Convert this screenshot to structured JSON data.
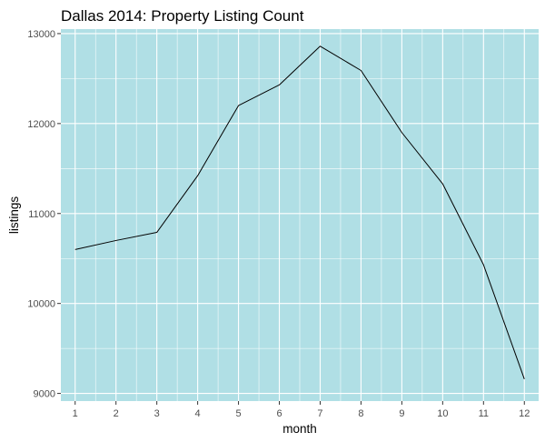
{
  "chart_data": {
    "type": "line",
    "title": "Dallas 2014: Property Listing Count",
    "xlabel": "month",
    "ylabel": "listings",
    "x": [
      1,
      2,
      3,
      4,
      5,
      6,
      7,
      8,
      9,
      10,
      11,
      12
    ],
    "series": [
      {
        "values": [
          10600,
          10700,
          10790,
          11420,
          12200,
          12430,
          12860,
          12590,
          11900,
          11330,
          10430,
          9160
        ]
      }
    ],
    "x_ticks": [
      "1",
      "2",
      "3",
      "4",
      "5",
      "6",
      "7",
      "8",
      "9",
      "10",
      "11",
      "12"
    ],
    "y_ticks": [
      "9000",
      "10000",
      "11000",
      "12000",
      "13000"
    ],
    "xlim": [
      0.65,
      12.35
    ],
    "ylim": [
      8915,
      13050
    ],
    "grid": true,
    "legend": "none",
    "colors": {
      "panel_background": "#b0dfe5",
      "grid": "#ffffff",
      "line": "#000000"
    }
  }
}
